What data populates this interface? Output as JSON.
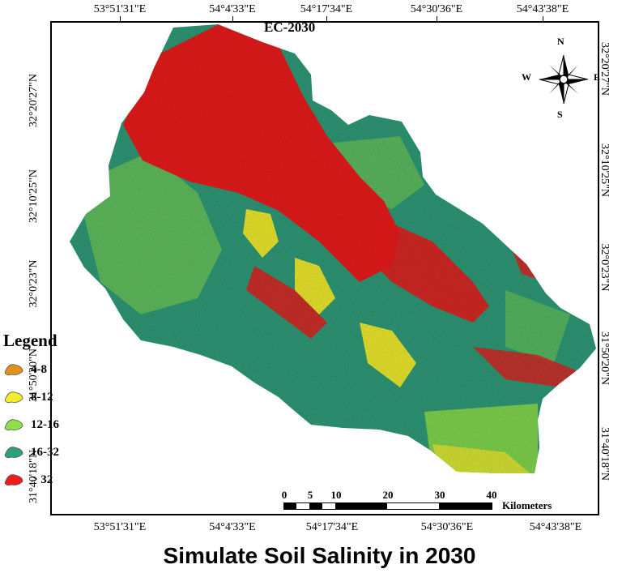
{
  "map": {
    "title": "EC-2030",
    "longitude_ticks_top": [
      "53°51'31\"E",
      "54°4'33\"E",
      "54°17'34\"E",
      "54°30'36\"E",
      "54°43'38\"E"
    ],
    "longitude_ticks_bottom": [
      "53°51'31\"E",
      "54°4'33\"E",
      "54°17'34\"E",
      "54°30'36\"E",
      "54°43'38\"E"
    ],
    "latitude_ticks_left": [
      "32°20'27\"N",
      "32°10'25\"N",
      "32°0'23\"N",
      "31°50'20\"N",
      "31°40'18\"N"
    ],
    "latitude_ticks_right": [
      "32°20'27\"N",
      "32°10'25\"N",
      "32°0'23\"N",
      "31°50'20\"N",
      "31°40'18\"N"
    ],
    "compass": {
      "n": "N",
      "s": "S",
      "e": "E",
      "w": "W"
    },
    "scale_bar": {
      "ticks": [
        "0",
        "5",
        "10",
        "20",
        "30",
        "40"
      ],
      "unit": "Kilometers"
    },
    "colors": {
      "very_high": "#ee1c1c",
      "high": "#2f9e7a",
      "medium": "#8ee04a",
      "low": "#f2ee2e",
      "very_low": "#e0921c"
    }
  },
  "legend": {
    "title": "Legend",
    "items": [
      {
        "label": "4-8",
        "color": "#e0921c"
      },
      {
        "label": "8-12",
        "color": "#f2ee2e"
      },
      {
        "label": "12-16",
        "color": "#8ee04a"
      },
      {
        "label": "16-32",
        "color": "#2f9e7a"
      },
      {
        "label": "> 32",
        "color": "#ee1c1c"
      }
    ]
  },
  "caption": "Simulate Soil Salinity in 2030"
}
